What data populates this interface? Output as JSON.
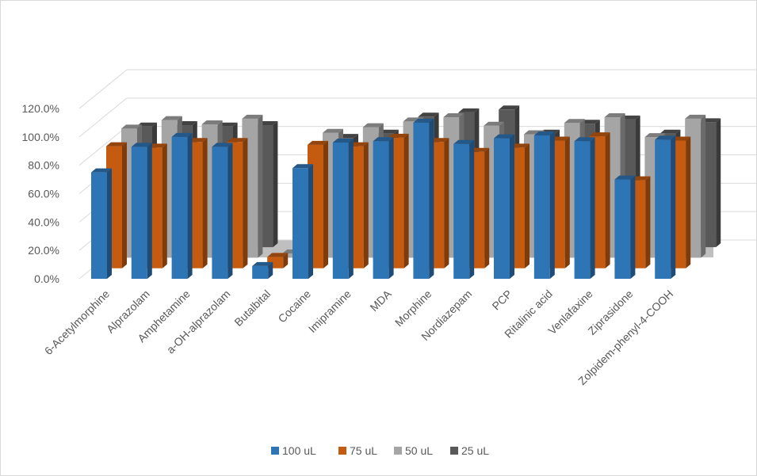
{
  "chart_data": {
    "type": "bar",
    "subtype": "3d-clustered-column",
    "title": "",
    "xlabel": "",
    "ylabel": "",
    "ylim": [
      0,
      120
    ],
    "y_tick_labels": [
      "0.0%",
      "20.0%",
      "40.0%",
      "60.0%",
      "80.0%",
      "100.0%",
      "120.0%"
    ],
    "grid": true,
    "legend_position": "bottom",
    "categories": [
      "6-Acetylmorphine",
      "Alprazolam",
      "Amphetamine",
      "a-OH-alprazolam",
      "Butalbital",
      "Cocaine",
      "Imipramine",
      "MDA",
      "Morphine",
      "Nordiazepam",
      "PCP",
      "Ritalinic acid",
      "Venlafaxine",
      "Ziprasidone",
      "Zolpidem-phenyl-4-COOH"
    ],
    "series": [
      {
        "name": "100 uL",
        "color": "#2e75b6",
        "values": [
          75,
          93,
          100,
          93,
          9,
          78,
          96,
          97,
          110,
          95,
          99,
          101,
          97,
          70,
          98
        ]
      },
      {
        "name": "75 uL",
        "color": "#c55a11",
        "values": [
          86,
          85,
          89,
          89,
          8,
          87,
          86,
          92,
          89,
          82,
          85,
          90,
          93,
          62,
          90
        ]
      },
      {
        "name": "50 uL",
        "color": "#a5a5a5",
        "values": [
          91,
          97,
          94,
          98,
          3,
          88,
          92,
          96,
          99,
          93,
          87,
          95,
          99,
          85,
          98
        ]
      },
      {
        "name": "25 uL",
        "color": "#595959",
        "values": [
          85,
          86,
          85,
          86,
          0,
          77,
          80,
          92,
          95,
          97,
          80,
          87,
          90,
          80,
          88
        ]
      }
    ]
  }
}
